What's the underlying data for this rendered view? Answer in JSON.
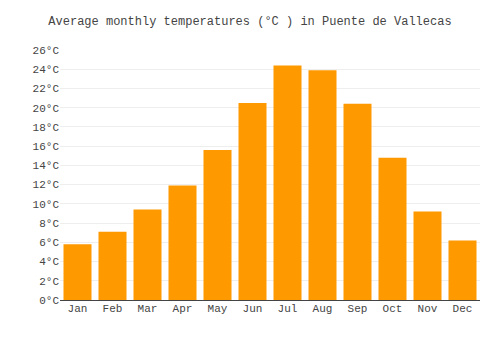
{
  "chart_data": {
    "type": "bar",
    "title": "Average monthly temperatures (°C ) in Puente de Vallecas",
    "categories": [
      "Jan",
      "Feb",
      "Mar",
      "Apr",
      "May",
      "Jun",
      "Jul",
      "Aug",
      "Sep",
      "Oct",
      "Nov",
      "Dec"
    ],
    "values": [
      5.8,
      7.1,
      9.4,
      11.9,
      15.6,
      20.5,
      24.4,
      23.9,
      20.4,
      14.8,
      9.2,
      6.2
    ],
    "color": "#FF9900",
    "ylim": [
      0,
      26
    ],
    "yticks": [
      {
        "value": 0,
        "label": "0°C"
      },
      {
        "value": 2,
        "label": "2°C"
      },
      {
        "value": 4,
        "label": "4°C"
      },
      {
        "value": 6,
        "label": "6°C"
      },
      {
        "value": 8,
        "label": "8°C"
      },
      {
        "value": 10,
        "label": "10°C"
      },
      {
        "value": 12,
        "label": "12°C"
      },
      {
        "value": 14,
        "label": "14°C"
      },
      {
        "value": 16,
        "label": "16°C"
      },
      {
        "value": 18,
        "label": "18°C"
      },
      {
        "value": 20,
        "label": "20°C"
      },
      {
        "value": 22,
        "label": "22°C"
      },
      {
        "value": 24,
        "label": "24°C"
      },
      {
        "value": 26,
        "label": "26°C"
      }
    ],
    "grid": true
  }
}
